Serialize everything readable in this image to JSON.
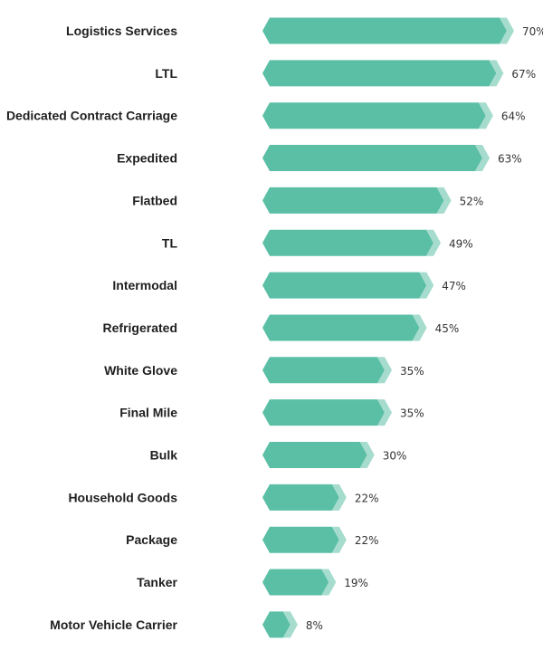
{
  "chart_data": {
    "type": "bar",
    "orientation": "horizontal",
    "categories": [
      "Logistics Services",
      "LTL",
      "Dedicated Contract Carriage",
      "Expedited",
      "Flatbed",
      "TL",
      "Intermodal",
      "Refrigerated",
      "White Glove",
      "Final Mile",
      "Bulk",
      "Household Goods",
      "Package",
      "Tanker",
      "Motor Vehicle Carrier"
    ],
    "values": [
      70,
      67,
      64,
      63,
      52,
      49,
      47,
      45,
      35,
      35,
      30,
      22,
      22,
      19,
      8
    ],
    "value_labels": [
      "70%",
      "67%",
      "64%",
      "63%",
      "52%",
      "49%",
      "47%",
      "45%",
      "35%",
      "35%",
      "30%",
      "22%",
      "22%",
      "19%",
      "8%"
    ],
    "title": "",
    "xlabel": "",
    "ylabel": "",
    "xlim": [
      0,
      70
    ],
    "grid": false,
    "legend": "none",
    "colors": {
      "bar": "#5bbfa6",
      "bar_tip": "#a6dccd",
      "category_text": "#1f1f1f",
      "value_text": "#333333"
    }
  }
}
